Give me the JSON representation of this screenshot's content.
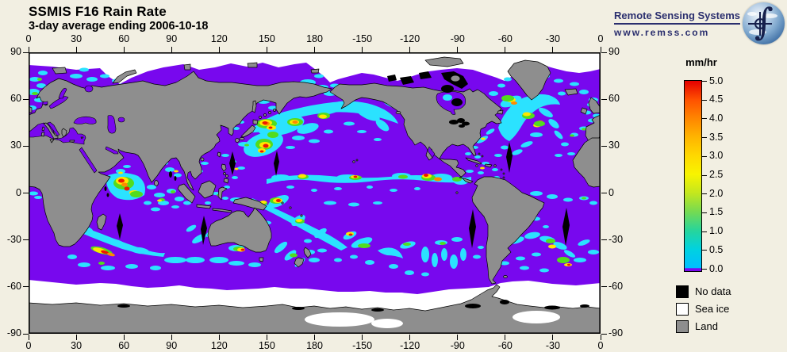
{
  "header": {
    "title": "SSMIS F16 Rain Rate",
    "subtitle": "3-day average ending 2006-10-18"
  },
  "logo": {
    "name": "Remote Sensing Systems",
    "url": "www.remss.com"
  },
  "colors": {
    "background": "#F2EFE2",
    "ocean": "#7808EE",
    "land": "#8E8E8E",
    "sea_ice": "#FFFFFF",
    "no_data": "#000000",
    "rain_light": "#2BE2FF",
    "rain_green": "#52DC1E",
    "rain_yellow": "#FFE600",
    "rain_orange": "#FF8A00",
    "rain_red": "#EC1800",
    "logo_navy": "#2B2F6E"
  },
  "chart_data": {
    "type": "heatmap",
    "title": "SSMIS F16 Rain Rate",
    "subtitle": "3-day average ending 2006-10-18",
    "variable": "rain rate",
    "units": "mm/hr",
    "projection": "equirectangular global map, longitude 0 to 360, latitude 90 to -90",
    "x_axis": {
      "ticks": [
        "0",
        "30",
        "60",
        "90",
        "120",
        "150",
        "180",
        "-150",
        "-120",
        "-90",
        "-60",
        "-30",
        "0"
      ]
    },
    "y_axis": {
      "ticks": [
        "90",
        "60",
        "30",
        "0",
        "-30",
        "-60",
        "-90"
      ]
    },
    "colorbar": {
      "label": "mm/hr",
      "min": 0.0,
      "max": 5.0,
      "tick_step": 0.5,
      "ticks": [
        "5.0",
        "4.5",
        "4.0",
        "3.5",
        "3.0",
        "2.5",
        "2.0",
        "1.5",
        "1.0",
        "0.5",
        "0.0"
      ],
      "stops": [
        {
          "value": 5.0,
          "color": "#E40000"
        },
        {
          "value": 4.5,
          "color": "#FF5000"
        },
        {
          "value": 4.0,
          "color": "#FF8600"
        },
        {
          "value": 3.5,
          "color": "#FFB400"
        },
        {
          "value": 3.0,
          "color": "#FFD800"
        },
        {
          "value": 2.5,
          "color": "#F8F400"
        },
        {
          "value": 2.0,
          "color": "#C3E71E"
        },
        {
          "value": 1.5,
          "color": "#75DA52"
        },
        {
          "value": 1.0,
          "color": "#27D59B"
        },
        {
          "value": 0.5,
          "color": "#00D2E0"
        },
        {
          "value": 0.0,
          "color": "#00BEFF"
        }
      ],
      "zero_color": "#7808EE"
    },
    "legend": [
      {
        "label": "No data",
        "color": "#000000"
      },
      {
        "label": "Sea ice",
        "color": "#FFFFFF"
      },
      {
        "label": "Land",
        "color": "#8E8E8E"
      }
    ],
    "features": [
      "Rain band along the Pacific ITCZ near 5-10N",
      "Intense storm cells with heavy rain east of Japan in the NW Pacific",
      "North Atlantic storm track south of Greenland",
      "Tropical rain clusters over the Indian Ocean and Maritime Continent",
      "Southern Ocean frontal rain bands near 40-55S",
      "White polar caps show sea ice / no retrieval",
      "Black swaths are missing orbit data; land shown gray"
    ]
  }
}
